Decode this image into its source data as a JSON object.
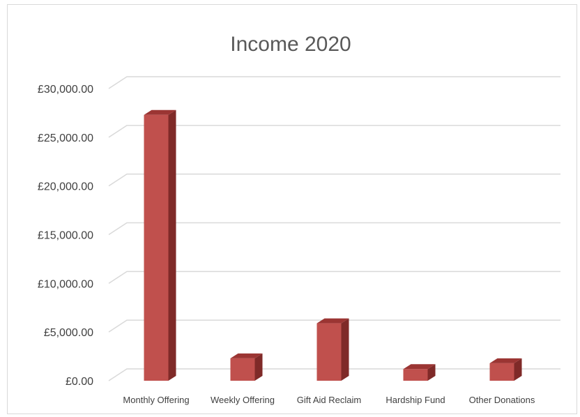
{
  "chart_data": {
    "type": "bar",
    "title": "Income 2020",
    "xlabel": "",
    "ylabel": "",
    "categories": [
      "Monthly Offering",
      "Weekly Offering",
      "Gift Aid Reclaim",
      "Hardship Fund",
      "Other Donations"
    ],
    "values": [
      27300,
      2300,
      5900,
      1200,
      1800
    ],
    "ylim": [
      0,
      30000
    ],
    "yticks": [
      "£0.00",
      "£5,000.00",
      "£10,000.00",
      "£15,000.00",
      "£20,000.00",
      "£25,000.00",
      "£30,000.00"
    ],
    "ytick_values": [
      0,
      5000,
      10000,
      15000,
      20000,
      25000,
      30000
    ],
    "grid": true,
    "legend": "none",
    "style": "3d-column",
    "colors": {
      "front": "#c0504d",
      "side": "#7f2a28",
      "top": "#9b3533"
    }
  }
}
